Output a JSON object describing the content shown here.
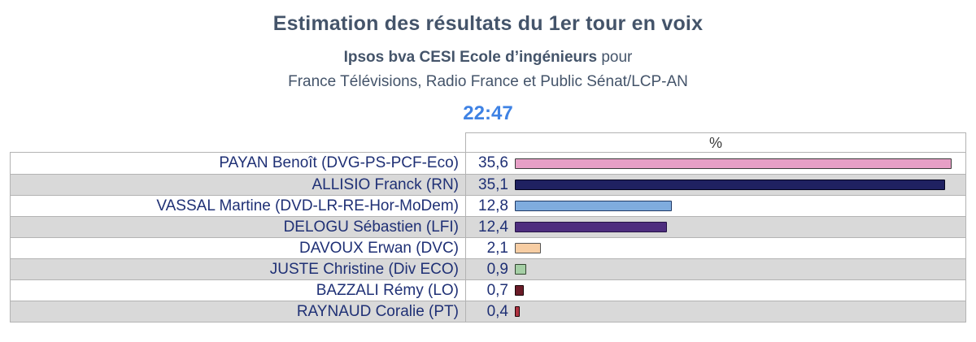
{
  "header": {
    "title": "Estimation des résultats du 1er tour en voix",
    "pollster_bold": "Ipsos bva CESI Ecole d’ingénieurs",
    "pollster_suffix": " pour",
    "media_line": "France Télévisions, Radio France et Public Sénat/LCP-AN",
    "time": "22:47"
  },
  "chart_data": {
    "type": "bar",
    "orientation": "horizontal",
    "title": "Estimation des résultats du 1er tour en voix",
    "column_header": "%",
    "xlabel": "%",
    "xlim": [
      0,
      36.5
    ],
    "grid": false,
    "legend": false,
    "categories": [
      "PAYAN Benoît (DVG-PS-PCF-Eco)",
      "ALLISIO Franck (RN)",
      "VASSAL Martine (DVD-LR-RE-Hor-MoDem)",
      "DELOGU Sébastien (LFI)",
      "DAVOUX Erwan (DVC)",
      "JUSTE Christine (Div ECO)",
      "BAZZALI Rémy (LO)",
      "RAYNAUD Coralie (PT)"
    ],
    "values": [
      35.6,
      35.1,
      12.8,
      12.4,
      2.1,
      0.9,
      0.7,
      0.4
    ],
    "rows": [
      {
        "candidate": "PAYAN Benoît (DVG-PS-PCF-Eco)",
        "label": "35,6",
        "value": 35.6,
        "color": "#E79FC6",
        "border_color": "#3B3B3B"
      },
      {
        "candidate": "ALLISIO Franck (RN)",
        "label": "35,1",
        "value": 35.1,
        "color": "#1F2161",
        "border_color": "#05051E"
      },
      {
        "candidate": "VASSAL Martine (DVD-LR-RE-Hor-MoDem)",
        "label": "12,8",
        "value": 12.8,
        "color": "#7FACDE",
        "border_color": "#1F3864"
      },
      {
        "candidate": "DELOGU Sébastien (LFI)",
        "label": "12,4",
        "value": 12.4,
        "color": "#4E2D7E",
        "border_color": "#241245"
      },
      {
        "candidate": "DAVOUX Erwan (DVC)",
        "label": "2,1",
        "value": 2.1,
        "color": "#F7CDA3",
        "border_color": "#555555"
      },
      {
        "candidate": "JUSTE Christine (Div ECO)",
        "label": "0,9",
        "value": 0.9,
        "color": "#A5CFA5",
        "border_color": "#31442F"
      },
      {
        "candidate": "BAZZALI Rémy (LO)",
        "label": "0,7",
        "value": 0.7,
        "color": "#6B1C28",
        "border_color": "#160608"
      },
      {
        "candidate": "RAYNAUD Coralie (PT)",
        "label": "0,4",
        "value": 0.4,
        "color": "#B03240",
        "border_color": "#200408"
      }
    ]
  },
  "colors": {
    "title_text": "#44546A",
    "time_text": "#3E82E4",
    "row_text": "#1F3075",
    "alt_row_bg": "#D9D9D9",
    "grid_line": "#B3B3B3",
    "percent_header_text": "#3A3A3A"
  }
}
